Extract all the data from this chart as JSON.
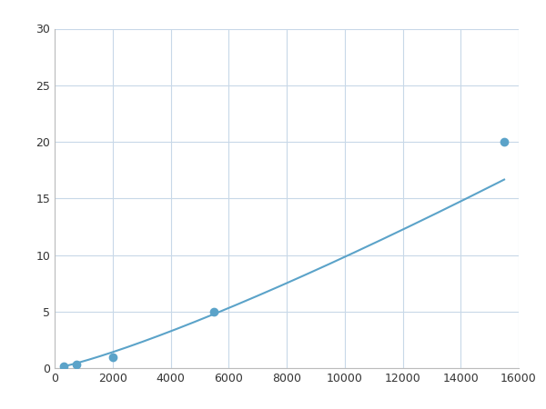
{
  "x_points": [
    300,
    750,
    2000,
    5500,
    15500
  ],
  "y_points": [
    0.2,
    0.35,
    1.0,
    5.0,
    20.0
  ],
  "line_color": "#5BA3C9",
  "marker_color": "#5BA3C9",
  "marker_size": 6,
  "line_width": 1.5,
  "xlim": [
    0,
    16000
  ],
  "ylim": [
    0,
    30
  ],
  "xticks": [
    0,
    2000,
    4000,
    6000,
    8000,
    10000,
    12000,
    14000,
    16000
  ],
  "yticks": [
    0,
    5,
    10,
    15,
    20,
    25,
    30
  ],
  "grid_color": "#C8D8E8",
  "background_color": "#FFFFFF",
  "figsize": [
    6.0,
    4.5
  ],
  "dpi": 100
}
